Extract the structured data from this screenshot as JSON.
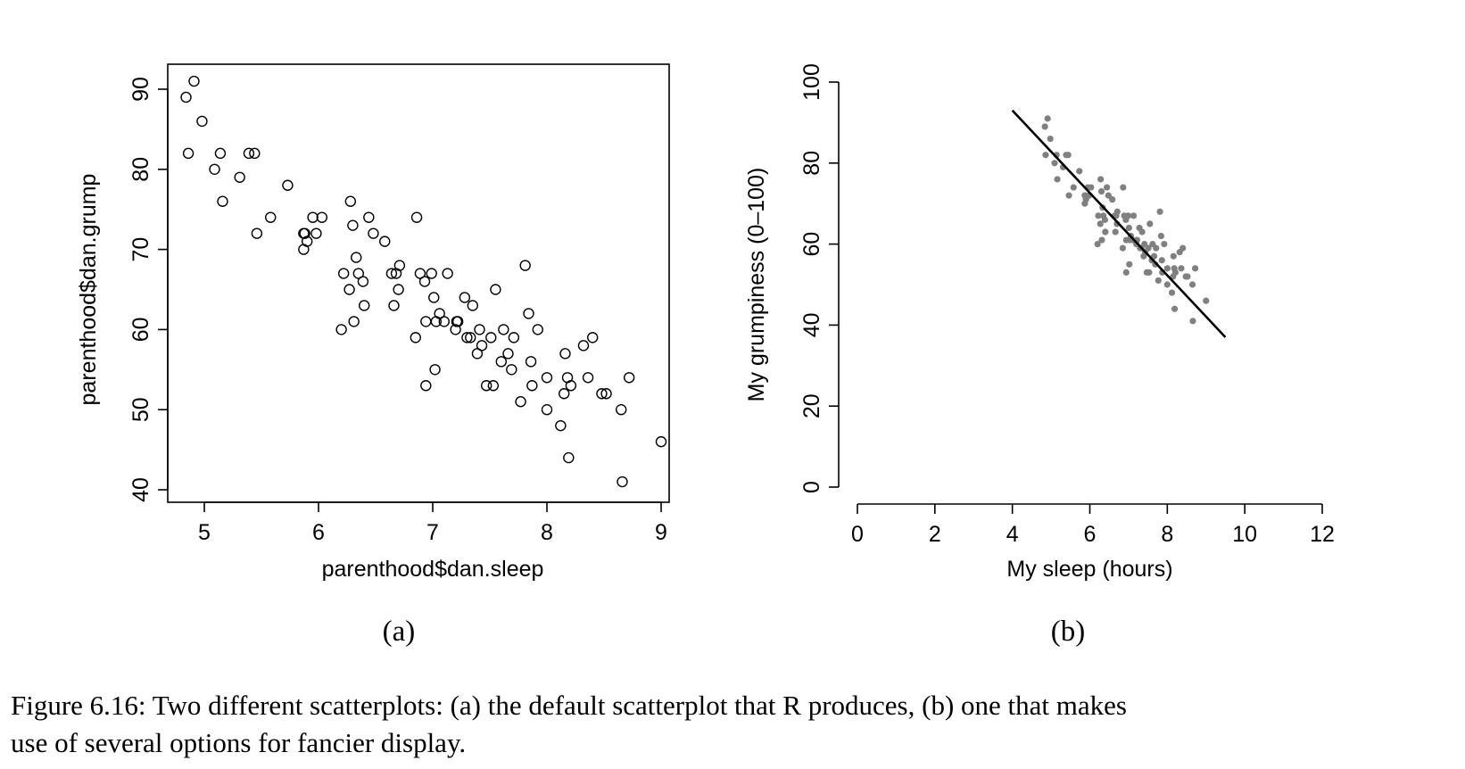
{
  "chart_data": [
    {
      "type": "scatter",
      "panel_label": "(a)",
      "title": "",
      "xlabel": "parenthood$dan.sleep",
      "ylabel": "parenthood$dan.grump",
      "xlim": [
        4.84,
        9.0
      ],
      "ylim": [
        41,
        91
      ],
      "xticks": [
        5,
        6,
        7,
        8,
        9
      ],
      "yticks": [
        40,
        50,
        60,
        70,
        80,
        90
      ],
      "marker": "open-circle",
      "point_color": "#000000",
      "box": true,
      "x": [
        4.84,
        4.86,
        4.91,
        4.98,
        5.09,
        5.14,
        5.16,
        5.31,
        5.39,
        5.44,
        5.46,
        5.58,
        5.73,
        5.87,
        5.87,
        5.88,
        5.9,
        5.95,
        5.98,
        6.03,
        6.2,
        6.22,
        6.27,
        6.28,
        6.3,
        6.31,
        6.33,
        6.35,
        6.39,
        6.4,
        6.44,
        6.48,
        6.58,
        6.64,
        6.66,
        6.68,
        6.7,
        6.71,
        6.85,
        6.86,
        6.89,
        6.93,
        6.94,
        6.94,
        6.99,
        7.01,
        7.02,
        7.03,
        7.06,
        7.1,
        7.13,
        7.2,
        7.21,
        7.22,
        7.28,
        7.3,
        7.33,
        7.35,
        7.39,
        7.41,
        7.43,
        7.47,
        7.51,
        7.53,
        7.55,
        7.6,
        7.62,
        7.66,
        7.69,
        7.71,
        7.77,
        7.81,
        7.84,
        7.86,
        7.87,
        7.92,
        8.0,
        8.0,
        8.12,
        8.15,
        8.16,
        8.18,
        8.19,
        8.21,
        8.32,
        8.36,
        8.4,
        8.48,
        8.52,
        8.65,
        8.66,
        8.72,
        9.0
      ],
      "y": [
        89,
        82,
        91,
        86,
        80,
        82,
        76,
        79,
        82,
        82,
        72,
        74,
        78,
        72,
        70,
        72,
        71,
        74,
        72,
        74,
        60,
        67,
        65,
        76,
        73,
        61,
        69,
        67,
        66,
        63,
        74,
        72,
        71,
        67,
        63,
        67,
        65,
        68,
        59,
        74,
        67,
        66,
        53,
        61,
        67,
        64,
        55,
        61,
        62,
        61,
        67,
        60,
        61,
        61,
        64,
        59,
        59,
        63,
        57,
        60,
        58,
        53,
        59,
        53,
        65,
        56,
        60,
        57,
        55,
        59,
        51,
        68,
        62,
        56,
        53,
        60,
        50,
        54,
        48,
        52,
        57,
        54,
        44,
        53,
        58,
        54,
        59,
        52,
        52,
        50,
        41,
        54,
        46
      ]
    },
    {
      "type": "scatter",
      "panel_label": "(b)",
      "title": "",
      "xlabel": "My sleep (hours)",
      "ylabel": "My grumpiness (0–100)",
      "xlim": [
        0,
        12
      ],
      "ylim": [
        0,
        100
      ],
      "xticks": [
        0,
        2,
        4,
        6,
        8,
        10,
        12
      ],
      "yticks": [
        0,
        20,
        40,
        60,
        80,
        100
      ],
      "marker": "filled-dot",
      "point_color": "#808080",
      "box": false,
      "regression_line": {
        "x": [
          4,
          9.5
        ],
        "y": [
          93,
          37
        ],
        "color": "#000000"
      },
      "x": [
        4.84,
        4.86,
        4.91,
        4.98,
        5.09,
        5.14,
        5.16,
        5.31,
        5.39,
        5.44,
        5.46,
        5.58,
        5.73,
        5.87,
        5.87,
        5.88,
        5.9,
        5.95,
        5.98,
        6.03,
        6.2,
        6.22,
        6.27,
        6.28,
        6.3,
        6.31,
        6.33,
        6.35,
        6.39,
        6.4,
        6.44,
        6.48,
        6.58,
        6.64,
        6.66,
        6.68,
        6.7,
        6.71,
        6.85,
        6.86,
        6.89,
        6.93,
        6.94,
        6.94,
        6.99,
        7.01,
        7.02,
        7.03,
        7.06,
        7.1,
        7.13,
        7.2,
        7.21,
        7.22,
        7.28,
        7.3,
        7.33,
        7.35,
        7.39,
        7.41,
        7.43,
        7.47,
        7.51,
        7.53,
        7.55,
        7.6,
        7.62,
        7.66,
        7.69,
        7.71,
        7.77,
        7.81,
        7.84,
        7.86,
        7.87,
        7.92,
        8.0,
        8.0,
        8.12,
        8.15,
        8.16,
        8.18,
        8.19,
        8.21,
        8.32,
        8.36,
        8.4,
        8.48,
        8.52,
        8.65,
        8.66,
        8.72,
        9.0
      ],
      "y": [
        89,
        82,
        91,
        86,
        80,
        82,
        76,
        79,
        82,
        82,
        72,
        74,
        78,
        72,
        70,
        72,
        71,
        74,
        72,
        74,
        60,
        67,
        65,
        76,
        73,
        61,
        69,
        67,
        66,
        63,
        74,
        72,
        71,
        67,
        63,
        67,
        65,
        68,
        59,
        74,
        67,
        66,
        53,
        61,
        67,
        64,
        55,
        61,
        62,
        61,
        67,
        60,
        61,
        61,
        64,
        59,
        59,
        63,
        57,
        60,
        58,
        53,
        59,
        53,
        65,
        56,
        60,
        57,
        55,
        59,
        51,
        68,
        62,
        56,
        53,
        60,
        50,
        54,
        48,
        52,
        57,
        54,
        44,
        53,
        58,
        54,
        59,
        52,
        52,
        50,
        41,
        54,
        46
      ]
    }
  ],
  "caption": {
    "line1": "Figure 6.16: Two different scatterplots: (a) the default scatterplot that R produces, (b) one that makes",
    "line2": "use of several options for fancier display."
  }
}
